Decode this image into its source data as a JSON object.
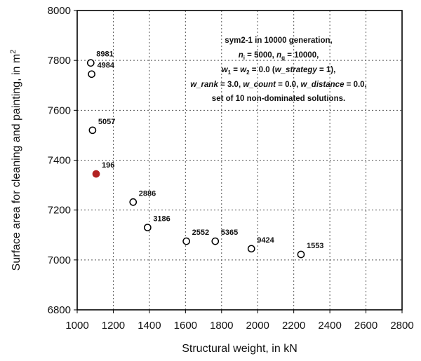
{
  "chart_data": {
    "type": "scatter",
    "xlabel": "Structural weight, in kN",
    "ylabel": "Surface area for cleaning and painting, in m",
    "ylabel_sup": "2",
    "xlim": [
      1000,
      2800
    ],
    "ylim": [
      6800,
      8000
    ],
    "xticks": [
      1000,
      1200,
      1400,
      1600,
      1800,
      2000,
      2200,
      2400,
      2600,
      2800
    ],
    "yticks": [
      6800,
      7000,
      7200,
      7400,
      7600,
      7800,
      8000
    ],
    "grid": true,
    "highlight_color": "#b22222",
    "points": [
      {
        "label": "8981",
        "x": 1075,
        "y": 7790,
        "highlight": false
      },
      {
        "label": "4984",
        "x": 1080,
        "y": 7745,
        "highlight": false
      },
      {
        "label": "5057",
        "x": 1085,
        "y": 7520,
        "highlight": false
      },
      {
        "label": "196",
        "x": 1105,
        "y": 7345,
        "highlight": true
      },
      {
        "label": "2886",
        "x": 1310,
        "y": 7232,
        "highlight": false
      },
      {
        "label": "3186",
        "x": 1390,
        "y": 7130,
        "highlight": false
      },
      {
        "label": "2552",
        "x": 1605,
        "y": 7075,
        "highlight": false
      },
      {
        "label": "5365",
        "x": 1765,
        "y": 7075,
        "highlight": false
      },
      {
        "label": "9424",
        "x": 1965,
        "y": 7045,
        "highlight": false
      },
      {
        "label": "1553",
        "x": 2240,
        "y": 7022,
        "highlight": false
      }
    ],
    "annotation": {
      "lines": [
        [
          {
            "t": "sym2-1 in 10000 generation,"
          }
        ],
        [
          {
            "t": "n",
            "i": true
          },
          {
            "t": "i",
            "sub": true
          },
          {
            "t": " = 5000, "
          },
          {
            "t": "n",
            "i": true
          },
          {
            "t": "g",
            "sub": true
          },
          {
            "t": " = 10000,"
          }
        ],
        [
          {
            "t": "w",
            "i": true
          },
          {
            "t": "1",
            "sub": true
          },
          {
            "t": " = "
          },
          {
            "t": "w",
            "i": true
          },
          {
            "t": "2",
            "sub": true
          },
          {
            "t": " = 0.0 ("
          },
          {
            "t": "w_strategy",
            "i": true
          },
          {
            "t": " = 1),"
          }
        ],
        [
          {
            "t": "w_rank",
            "i": true
          },
          {
            "t": " = 3.0, "
          },
          {
            "t": "w_count",
            "i": true
          },
          {
            "t": " = 0.0, "
          },
          {
            "t": "w_distance",
            "i": true
          },
          {
            "t": " = 0.0,"
          }
        ],
        [
          {
            "t": "set of 10 non-dominated solutions."
          }
        ]
      ]
    }
  }
}
